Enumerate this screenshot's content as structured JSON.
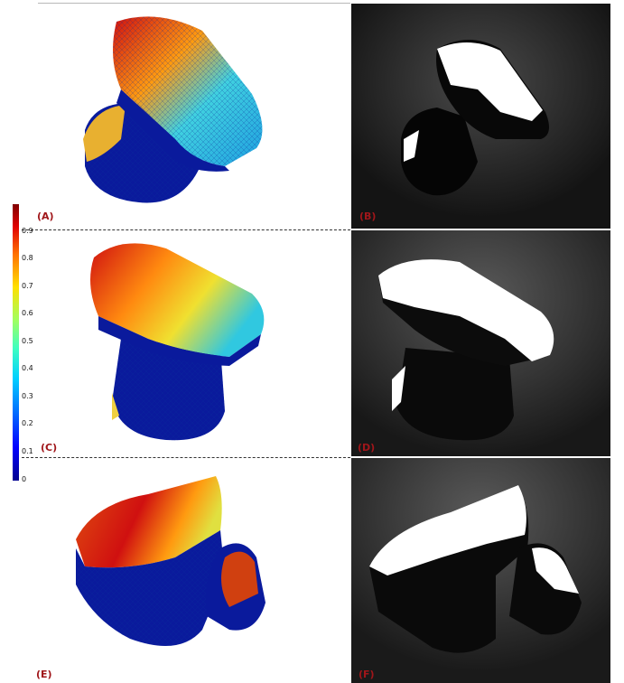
{
  "panels": {
    "a": {
      "label": "(A)"
    },
    "b": {
      "label": "(B)"
    },
    "c": {
      "label": "(C)"
    },
    "d": {
      "label": "(D)"
    },
    "e": {
      "label": "(E)"
    },
    "f": {
      "label": "(F)"
    }
  },
  "colorbar": {
    "ticks": [
      "0.9",
      "0.8",
      "0.7",
      "0.6",
      "0.5",
      "0.4",
      "0.3",
      "0.2",
      "0.1",
      "0"
    ],
    "colors": [
      "#00008f",
      "#0000ff",
      "#00d0ff",
      "#a0ff60",
      "#ffe000",
      "#ff7000",
      "#800000"
    ]
  }
}
